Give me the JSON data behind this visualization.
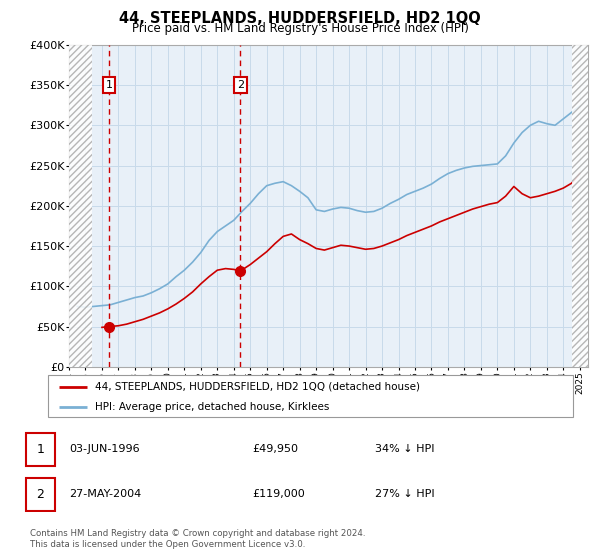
{
  "title": "44, STEEPLANDS, HUDDERSFIELD, HD2 1QQ",
  "subtitle": "Price paid vs. HM Land Registry's House Price Index (HPI)",
  "legend_line1": "44, STEEPLANDS, HUDDERSFIELD, HD2 1QQ (detached house)",
  "legend_line2": "HPI: Average price, detached house, Kirklees",
  "footer": "Contains HM Land Registry data © Crown copyright and database right 2024.\nThis data is licensed under the Open Government Licence v3.0.",
  "point1_date": "03-JUN-1996",
  "point1_price": "£49,950",
  "point1_hpi": "34% ↓ HPI",
  "point1_year": 1996.42,
  "point1_value": 49950,
  "point2_date": "27-MAY-2004",
  "point2_price": "£119,000",
  "point2_hpi": "27% ↓ HPI",
  "point2_year": 2004.4,
  "point2_value": 119000,
  "red_color": "#cc0000",
  "blue_color": "#7ab0d4",
  "grid_color": "#c8daea",
  "plot_bg": "#e8f0f8",
  "xmin": 1994.0,
  "xmax": 2025.5,
  "ymin": 0,
  "ymax": 400000,
  "hatch_left_end": 1995.4,
  "hatch_right_start": 2024.5,
  "hpi_years": [
    1994.5,
    1995.0,
    1995.5,
    1996.0,
    1996.5,
    1997.0,
    1997.5,
    1998.0,
    1998.5,
    1999.0,
    1999.5,
    2000.0,
    2000.5,
    2001.0,
    2001.5,
    2002.0,
    2002.5,
    2003.0,
    2003.5,
    2004.0,
    2004.5,
    2005.0,
    2005.5,
    2006.0,
    2006.5,
    2007.0,
    2007.5,
    2008.0,
    2008.5,
    2009.0,
    2009.5,
    2010.0,
    2010.5,
    2011.0,
    2011.5,
    2012.0,
    2012.5,
    2013.0,
    2013.5,
    2014.0,
    2014.5,
    2015.0,
    2015.5,
    2016.0,
    2016.5,
    2017.0,
    2017.5,
    2018.0,
    2018.5,
    2019.0,
    2019.5,
    2020.0,
    2020.5,
    2021.0,
    2021.5,
    2022.0,
    2022.5,
    2023.0,
    2023.5,
    2024.0,
    2024.5,
    2025.0
  ],
  "hpi_values": [
    75000,
    74000,
    75000,
    76000,
    77000,
    80000,
    83000,
    86000,
    88000,
    92000,
    97000,
    103000,
    112000,
    120000,
    130000,
    142000,
    157000,
    168000,
    175000,
    182000,
    193000,
    203000,
    215000,
    225000,
    228000,
    230000,
    225000,
    218000,
    210000,
    195000,
    193000,
    196000,
    198000,
    197000,
    194000,
    192000,
    193000,
    197000,
    203000,
    208000,
    214000,
    218000,
    222000,
    227000,
    234000,
    240000,
    244000,
    247000,
    249000,
    250000,
    251000,
    252000,
    262000,
    278000,
    291000,
    300000,
    305000,
    302000,
    300000,
    308000,
    316000,
    324000
  ],
  "red_years": [
    1996.0,
    1996.42,
    1997.0,
    1997.5,
    1998.0,
    1998.5,
    1999.0,
    1999.5,
    2000.0,
    2000.5,
    2001.0,
    2001.5,
    2002.0,
    2002.5,
    2003.0,
    2003.5,
    2004.0,
    2004.4,
    2005.0,
    2005.5,
    2006.0,
    2006.5,
    2007.0,
    2007.5,
    2008.0,
    2008.5,
    2009.0,
    2009.5,
    2010.0,
    2010.5,
    2011.0,
    2011.5,
    2012.0,
    2012.5,
    2013.0,
    2013.5,
    2014.0,
    2014.5,
    2015.0,
    2015.5,
    2016.0,
    2016.5,
    2017.0,
    2017.5,
    2018.0,
    2018.5,
    2019.0,
    2019.5,
    2020.0,
    2020.5,
    2021.0,
    2021.5,
    2022.0,
    2022.5,
    2023.0,
    2023.5,
    2024.0,
    2024.5,
    2025.0
  ],
  "red_values": [
    49000,
    49950,
    51000,
    53000,
    56000,
    59000,
    63000,
    67000,
    72000,
    78000,
    85000,
    93000,
    103000,
    112000,
    120000,
    122000,
    121000,
    119000,
    127000,
    135000,
    143000,
    153000,
    162000,
    165000,
    158000,
    153000,
    147000,
    145000,
    148000,
    151000,
    150000,
    148000,
    146000,
    147000,
    150000,
    154000,
    158000,
    163000,
    167000,
    171000,
    175000,
    180000,
    184000,
    188000,
    192000,
    196000,
    199000,
    202000,
    204000,
    212000,
    224000,
    215000,
    210000,
    212000,
    215000,
    218000,
    222000,
    228000,
    240000
  ]
}
